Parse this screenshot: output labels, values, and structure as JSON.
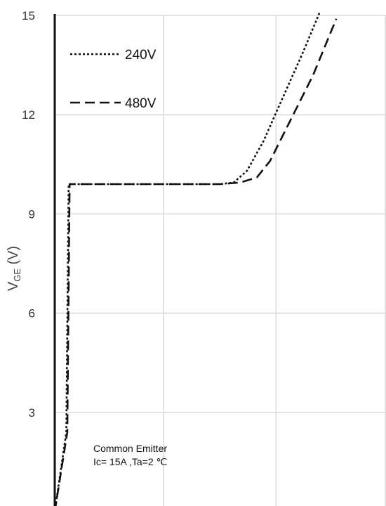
{
  "chart_data": {
    "type": "line",
    "title": "",
    "ylabel": {
      "main": "V",
      "sub": "GE",
      "unit": " (V)"
    },
    "xlabel": "",
    "ylim": [
      0,
      15
    ],
    "yticks": [
      {
        "value": 3,
        "label": "3"
      },
      {
        "value": 6,
        "label": "6"
      },
      {
        "value": 9,
        "label": "9"
      },
      {
        "value": 12,
        "label": "12"
      },
      {
        "value": 15,
        "label": "15"
      }
    ],
    "xlim": [
      0,
      100
    ],
    "xgrid": [
      33,
      67,
      100
    ],
    "grid": true,
    "legend_position": "top-left",
    "series": [
      {
        "name": "240V",
        "dash": "dotted",
        "color": "#111111",
        "points": [
          [
            0,
            0
          ],
          [
            3.5,
            2.4
          ],
          [
            4.2,
            9.9
          ],
          [
            20,
            9.9
          ],
          [
            40,
            9.9
          ],
          [
            50,
            9.9
          ],
          [
            54,
            9.95
          ],
          [
            58,
            10.3
          ],
          [
            63,
            11.2
          ],
          [
            67,
            12.1
          ],
          [
            75,
            13.9
          ],
          [
            80,
            15.1
          ]
        ]
      },
      {
        "name": "480V",
        "dash": "dashed",
        "color": "#111111",
        "points": [
          [
            0,
            0
          ],
          [
            3.8,
            2.4
          ],
          [
            4.5,
            9.9
          ],
          [
            20,
            9.9
          ],
          [
            40,
            9.9
          ],
          [
            50,
            9.9
          ],
          [
            56,
            9.95
          ],
          [
            61,
            10.1
          ],
          [
            65,
            10.6
          ],
          [
            70,
            11.6
          ],
          [
            78,
            13.2
          ],
          [
            85,
            14.9
          ]
        ]
      }
    ],
    "annotations": [
      "Common Emitter",
      "Ic= 15A ,Ta=2  ℃"
    ]
  }
}
